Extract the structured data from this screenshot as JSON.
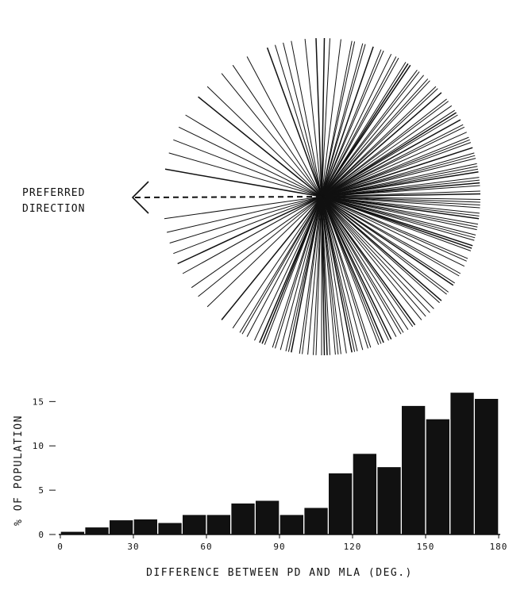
{
  "chart_data": [
    {
      "type": "polar_lines",
      "annotation": {
        "line1": "PREFERRED",
        "line2": "DIRECTION"
      },
      "directions_deg": [
        92,
        96,
        101,
        104,
        107,
        110,
        118,
        124,
        129,
        136,
        141,
        149,
        154,
        159,
        164,
        170,
        188,
        193,
        197,
        201,
        205,
        209,
        215,
        219,
        224,
        231,
        236,
        239,
        242,
        245,
        247,
        249,
        252,
        255,
        257,
        259,
        262,
        265,
        268,
        270,
        271,
        273,
        275,
        277,
        279,
        281,
        283,
        285,
        288,
        291,
        293,
        295,
        298,
        300,
        303,
        306,
        309,
        313,
        318,
        322,
        326,
        330,
        334,
        337,
        340,
        342,
        344,
        346,
        348,
        350,
        352,
        354,
        356,
        357,
        359,
        1,
        2,
        4,
        6,
        7,
        9,
        11,
        12,
        14,
        16,
        18,
        20,
        22,
        24,
        27,
        29,
        31,
        33,
        35,
        38,
        41,
        44,
        47,
        50,
        53,
        56,
        58,
        61,
        64,
        67,
        71,
        75,
        79,
        83,
        87,
        89,
        78,
        74,
        68,
        62,
        57,
        52,
        48,
        43,
        37,
        32,
        26,
        21,
        15,
        10,
        5,
        358,
        353,
        349,
        345,
        341,
        336,
        331,
        327,
        323,
        319,
        315,
        311,
        305,
        301,
        296,
        292,
        287,
        282,
        276,
        272,
        267,
        263,
        258,
        253,
        248,
        240
      ]
    },
    {
      "type": "bar",
      "xlabel": "DIFFERENCE BETWEEN PD AND MLA (DEG.)",
      "ylabel": "% OF POPULATION",
      "xlim": [
        0,
        180
      ],
      "ylim": [
        0,
        17
      ],
      "x_ticks": [
        0,
        30,
        60,
        90,
        120,
        150,
        180
      ],
      "y_ticks": [
        0,
        5,
        10,
        15
      ],
      "bin_width": 10,
      "bins": [
        [
          0,
          10
        ],
        [
          10,
          20
        ],
        [
          20,
          30
        ],
        [
          30,
          40
        ],
        [
          40,
          50
        ],
        [
          50,
          60
        ],
        [
          60,
          70
        ],
        [
          70,
          80
        ],
        [
          80,
          90
        ],
        [
          90,
          100
        ],
        [
          100,
          110
        ],
        [
          110,
          120
        ],
        [
          120,
          130
        ],
        [
          130,
          140
        ],
        [
          140,
          150
        ],
        [
          150,
          160
        ],
        [
          160,
          170
        ],
        [
          170,
          180
        ]
      ],
      "values": [
        0.3,
        0.8,
        1.6,
        1.7,
        1.3,
        2.2,
        2.2,
        3.5,
        3.8,
        2.2,
        3.0,
        6.9,
        9.1,
        7.6,
        14.5,
        13.0,
        16.0,
        15.3
      ]
    }
  ]
}
